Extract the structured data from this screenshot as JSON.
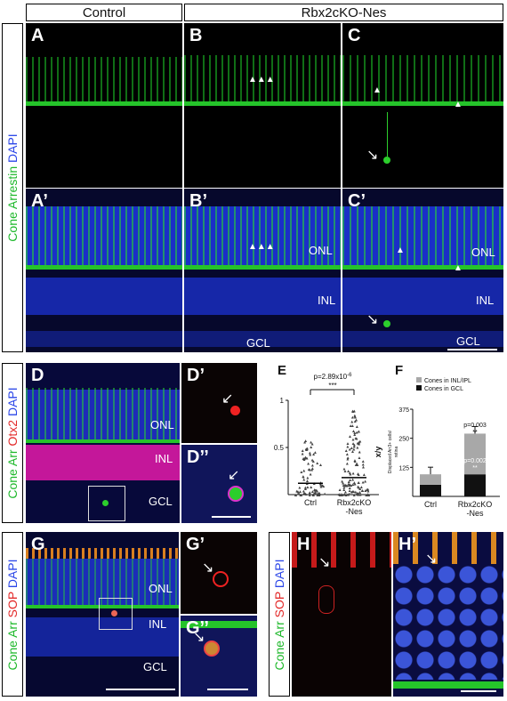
{
  "header": {
    "control": "Control",
    "mutant": "Rbx2cKO-Nes"
  },
  "side_top": [
    {
      "text": "Cone Arrestin",
      "color": "#1db82a"
    },
    {
      "text": " DAPI",
      "color": "#2b46e8"
    }
  ],
  "side_d": [
    {
      "text": "Cone Arr",
      "color": "#1db82a"
    },
    {
      "text": " Otx2",
      "color": "#e32a2a"
    },
    {
      "text": " DAPI",
      "color": "#2b46e8"
    }
  ],
  "side_g": [
    {
      "text": "Cone Arr",
      "color": "#1db82a"
    },
    {
      "text": " SOP",
      "color": "#e32a2a"
    },
    {
      "text": " DAPI",
      "color": "#2b46e8"
    }
  ],
  "side_h": [
    {
      "text": "Cone Arr",
      "color": "#1db82a"
    },
    {
      "text": " SOP",
      "color": "#e32a2a"
    },
    {
      "text": " DAPI",
      "color": "#2b46e8"
    }
  ],
  "panels": {
    "A": "A",
    "B": "B",
    "C": "C",
    "A2": "A’",
    "B2": "B’",
    "C2": "C’",
    "D": "D",
    "D1": "D’",
    "D2": "D’’",
    "E": "E",
    "F": "F",
    "G": "G",
    "G1": "G’",
    "G2": "G’’",
    "H": "H",
    "H1": "H’"
  },
  "layers": {
    "onl": "ONL",
    "inl": "INL",
    "gcl": "GCL"
  },
  "chart_data": [
    {
      "type": "scatter",
      "panel": "E",
      "categories": [
        "Ctrl",
        "Rbx2cKO\n-Nes"
      ],
      "ylabel": "x/y",
      "ylim": [
        0,
        1
      ],
      "yticks": [
        "0.5",
        "1"
      ],
      "series": [
        {
          "values_mean": [
            0.12,
            0.18
          ]
        }
      ],
      "annotation": {
        "p": "p=2.89x10",
        "exp": "-6",
        "stars": "***"
      }
    },
    {
      "type": "bar",
      "panel": "F",
      "categories": [
        "Ctrl",
        "Rbx2cKO\n-Nes"
      ],
      "ylabel": "Displaced Arr3+ cells/\nretina",
      "ylim": [
        0,
        375
      ],
      "yticks": [
        "125",
        "250",
        "375"
      ],
      "legend": [
        "Cones in INL/IPL",
        "Cones in GCL"
      ],
      "series": [
        {
          "name": "Cones in GCL",
          "values": [
            50,
            95
          ],
          "color": "#111111"
        },
        {
          "name": "Cones in INL/IPL",
          "values": [
            45,
            175
          ],
          "color": "#a8a8a8"
        }
      ],
      "annotations": {
        "p_top": "p=0.003",
        "stars_top": "**",
        "p_bottom": "p=0.002",
        "stars_bottom": "**"
      }
    }
  ]
}
